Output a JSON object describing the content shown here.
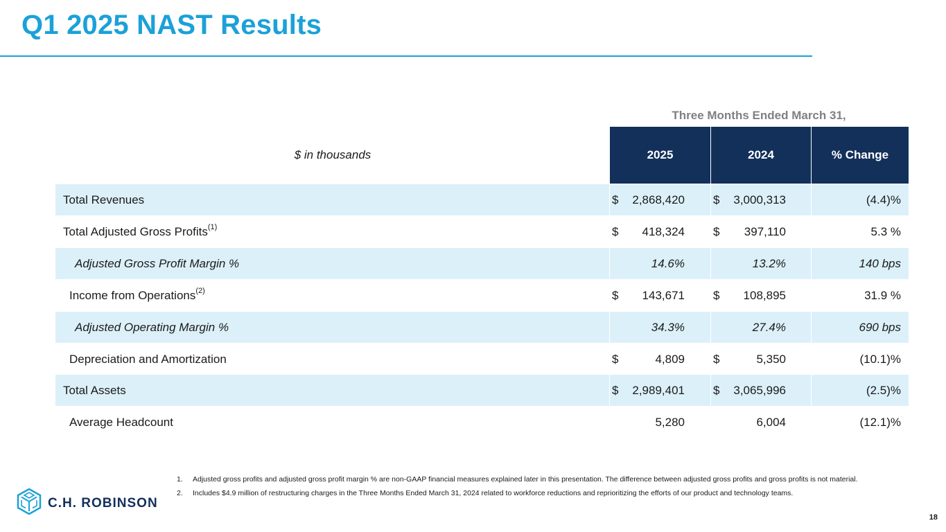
{
  "title": "Q1 2025 NAST Results",
  "table": {
    "super_header": "Three Months Ended March 31,",
    "unit_label": "$ in thousands",
    "columns": [
      "2025",
      "2024",
      "% Change"
    ],
    "rows": [
      {
        "label": "Total Revenues",
        "sup": "",
        "italic": false,
        "indent": false,
        "d2025": "$",
        "v2025": "2,868,420",
        "d2024": "$",
        "v2024": "3,000,313",
        "change": "(4.4)%"
      },
      {
        "label": "Total Adjusted Gross Profits",
        "sup": "(1)",
        "italic": false,
        "indent": false,
        "d2025": "$",
        "v2025": "418,324",
        "d2024": "$",
        "v2024": "397,110",
        "change": "5.3 %"
      },
      {
        "label": "Adjusted Gross Profit Margin %",
        "sup": "",
        "italic": true,
        "indent": true,
        "d2025": "",
        "v2025": "14.6%",
        "d2024": "",
        "v2024": "13.2%",
        "change": "140 bps"
      },
      {
        "label": "Income from Operations",
        "sup": "(2)",
        "italic": false,
        "indent": true,
        "d2025": "$",
        "v2025": "143,671",
        "d2024": "$",
        "v2024": "108,895",
        "change": "31.9 %"
      },
      {
        "label": "Adjusted Operating Margin %",
        "sup": "",
        "italic": true,
        "indent": true,
        "d2025": "",
        "v2025": "34.3%",
        "d2024": "",
        "v2024": "27.4%",
        "change": "690 bps"
      },
      {
        "label": "Depreciation and Amortization",
        "sup": "",
        "italic": false,
        "indent": true,
        "d2025": "$",
        "v2025": "4,809",
        "d2024": "$",
        "v2024": "5,350",
        "change": "(10.1)%"
      },
      {
        "label": "Total Assets",
        "sup": "",
        "italic": false,
        "indent": false,
        "d2025": "$",
        "v2025": "2,989,401",
        "d2024": "$",
        "v2024": "3,065,996",
        "change": "(2.5)%"
      },
      {
        "label": "Average Headcount",
        "sup": "",
        "italic": false,
        "indent": true,
        "d2025": "",
        "v2025": "5,280",
        "d2024": "",
        "v2024": "6,004",
        "change": "(12.1)%"
      }
    ]
  },
  "footnotes": [
    {
      "num": "1.",
      "text": "Adjusted gross profits and adjusted gross profit margin % are non-GAAP financial measures explained later in this presentation. The difference between adjusted gross profits and gross profits is not material."
    },
    {
      "num": "2.",
      "text": "Includes $4.9 million of restructuring charges in the Three Months Ended March 31, 2024 related to workforce reductions and reprioritizing the efforts of our product and technology teams."
    }
  ],
  "logo": {
    "text": "C.H. ROBINSON",
    "icon": "cube-logo-icon"
  },
  "page_number": "18",
  "colors": {
    "accent": "#1ba1d8",
    "header_bg": "#12305a",
    "band_bg": "#dcf0fa"
  }
}
